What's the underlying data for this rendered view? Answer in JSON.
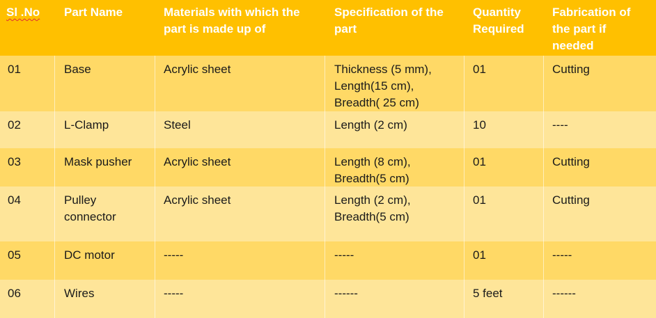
{
  "table": {
    "headers": [
      "Sl .No",
      "Part Name",
      "Materials with which the\npart is made up of",
      "Specification of the\npart",
      "Quantity\nRequired",
      "Fabrication of\nthe part if\nneeded"
    ],
    "rows": [
      [
        "01",
        "  Base",
        "   Acrylic sheet",
        "Thickness (5 mm),\nLength(15 cm),\nBreadth( 25 cm)",
        " 01",
        " Cutting"
      ],
      [
        "02",
        " L-Clamp",
        "   Steel",
        "Length (2 cm)",
        " 10",
        "  ----"
      ],
      [
        "03",
        " Mask pusher",
        "   Acrylic sheet",
        "Length (8 cm),\nBreadth(5 cm)",
        " 01",
        " Cutting"
      ],
      [
        "04",
        " Pulley\nconnector",
        "   Acrylic sheet",
        "Length (2 cm),\nBreadth(5 cm)",
        " 01",
        "  Cutting"
      ],
      [
        "05",
        " DC motor",
        "      -----",
        "    -----",
        " 01",
        " -----"
      ],
      [
        "06",
        " Wires",
        "      -----",
        "    ------",
        "5 feet",
        " ------"
      ]
    ]
  },
  "colors": {
    "header_bg": "#ffc000",
    "row_dark": "#ffd966",
    "row_light": "#fee599",
    "header_text": "#ffffff"
  }
}
